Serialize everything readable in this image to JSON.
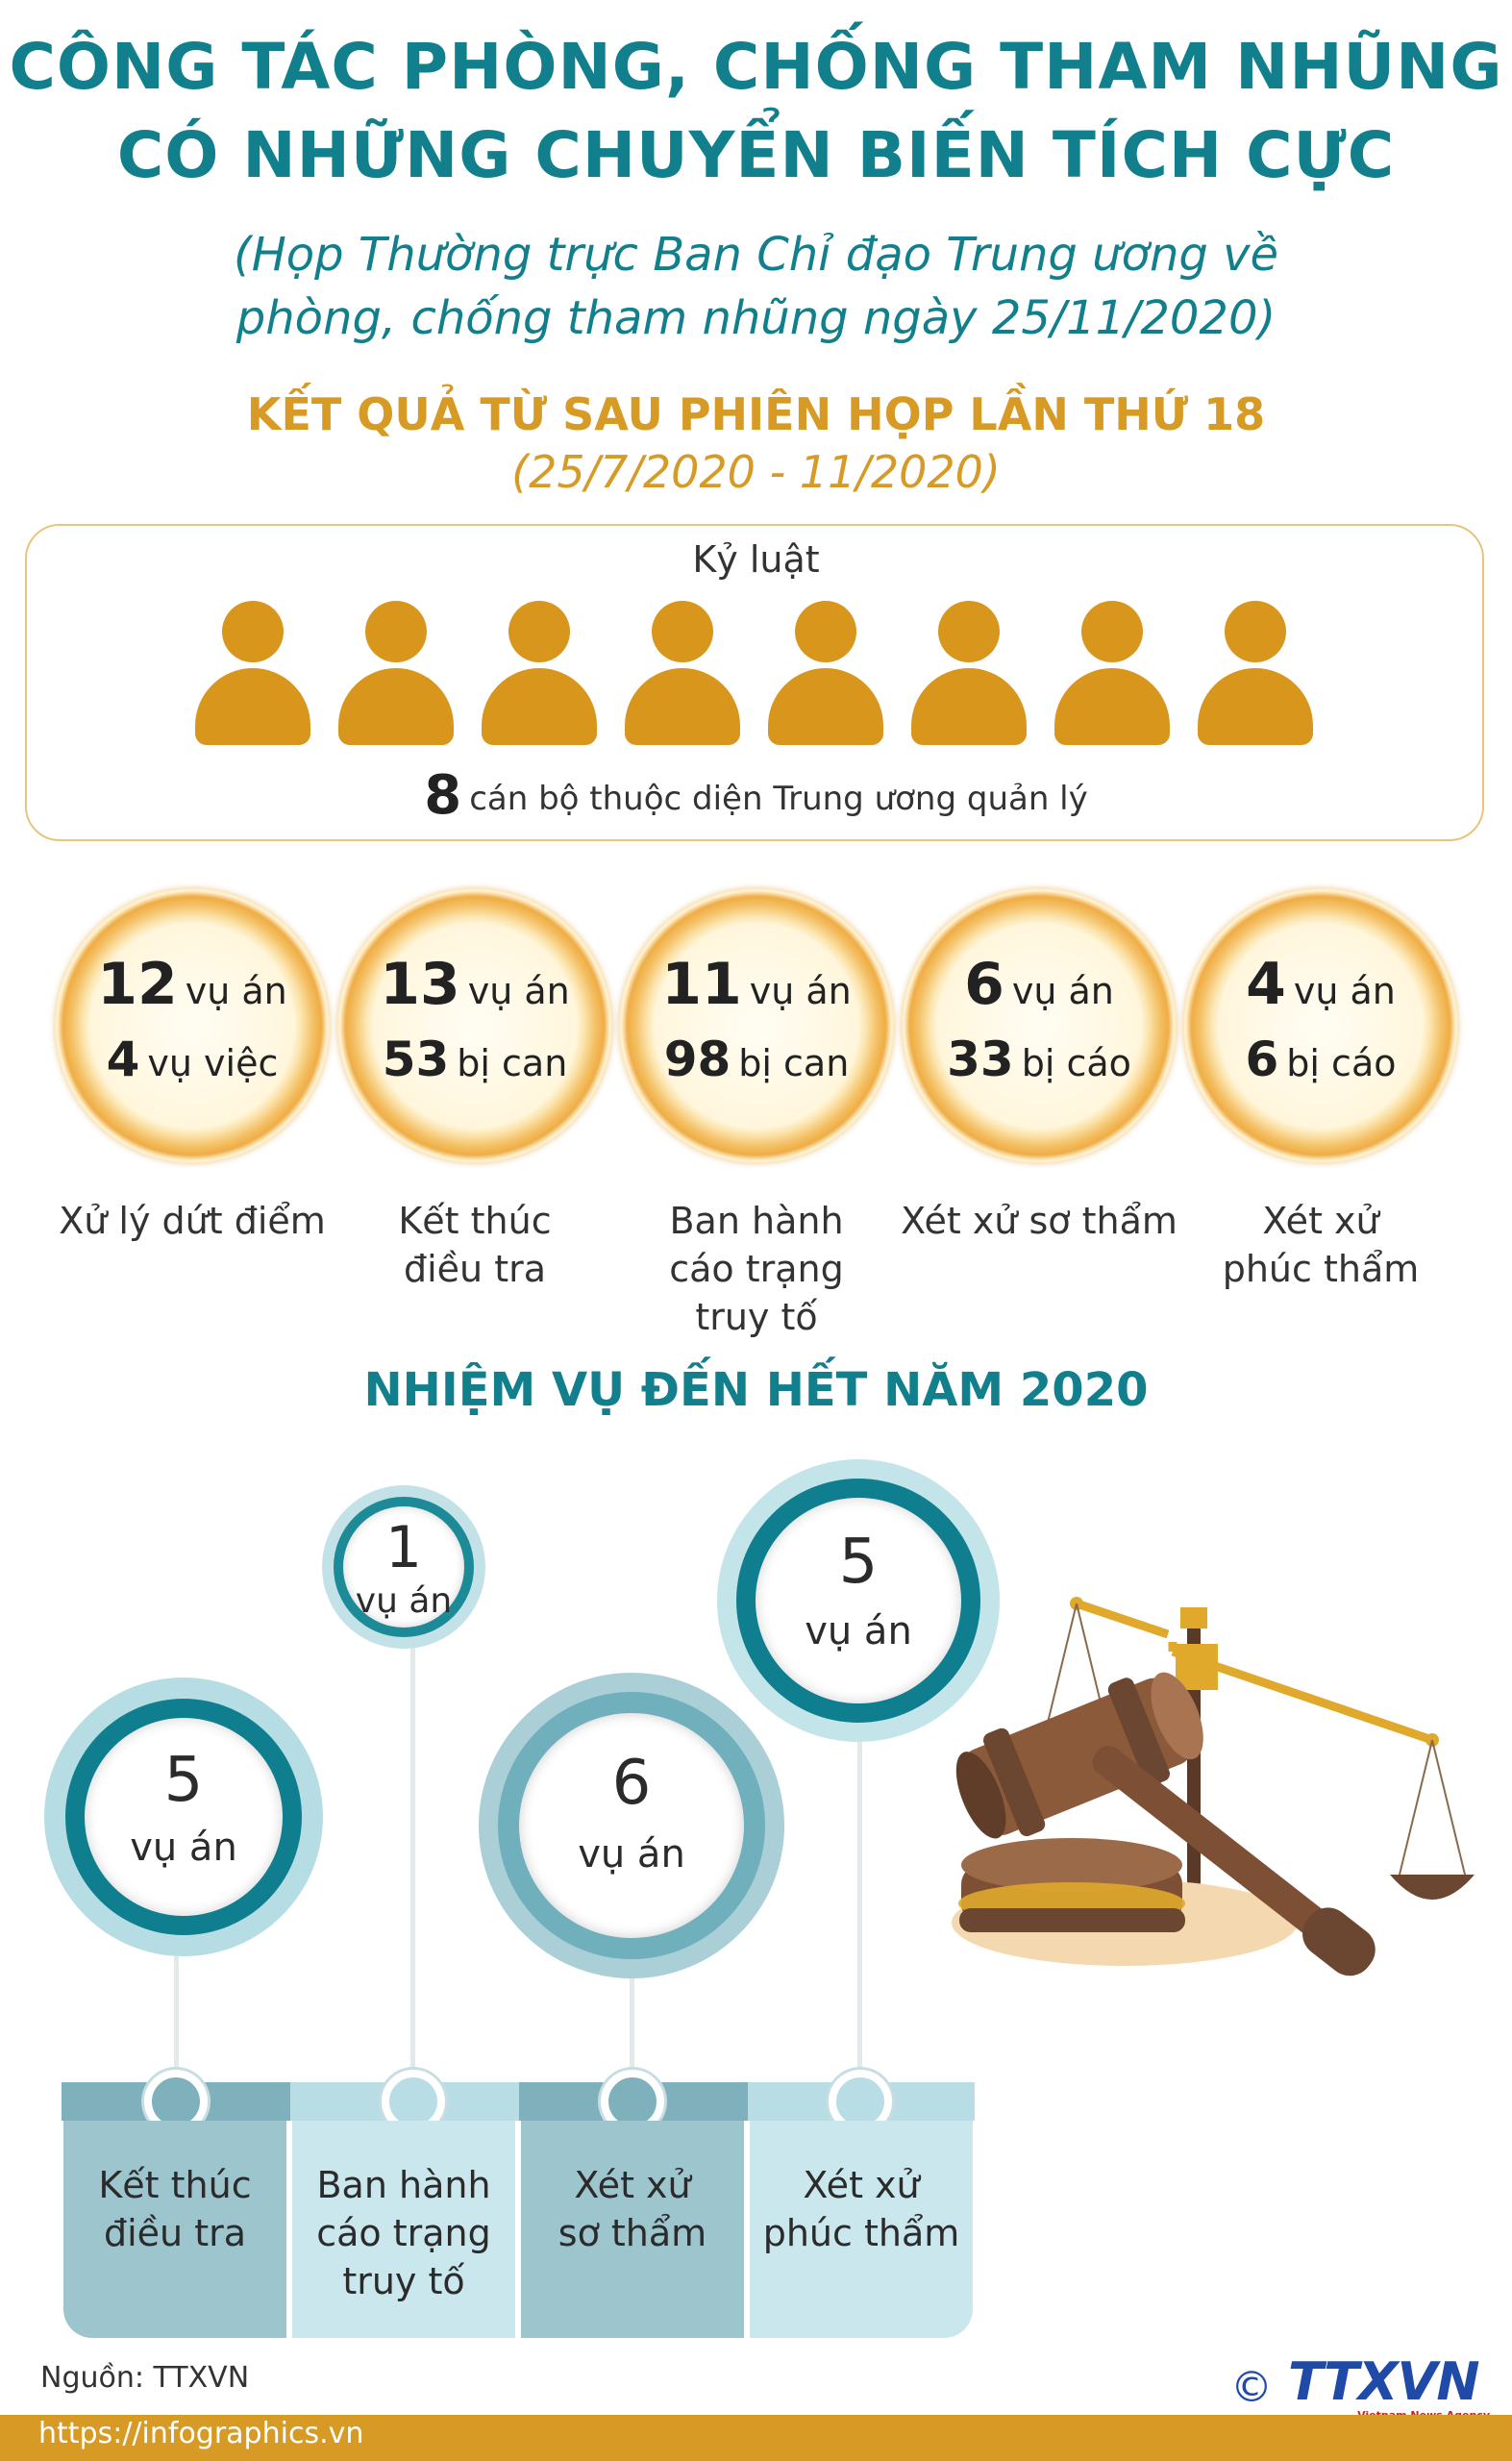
{
  "header": {
    "title_line1": "CÔNG TÁC PHÒNG, CHỐNG THAM NHŨNG",
    "title_line2": "CÓ NHỮNG CHUYỂN BIẾN TÍCH CỰC",
    "subtitle_line1": "(Họp Thường trực Ban Chỉ đạo Trung ương về",
    "subtitle_line2": "phòng, chống tham nhũng ngày 25/11/2020)"
  },
  "results": {
    "heading": "KẾT QUẢ TỪ SAU PHIÊN HỌP LẦN THỨ 18",
    "period": "(25/7/2020 - 11/2020)"
  },
  "discipline": {
    "label": "Kỷ luật",
    "count": "8",
    "description": "cán bộ thuộc diện Trung ương quản lý",
    "icon": "person-icon",
    "icon_color": "#d9961d"
  },
  "stats": [
    {
      "n1": "12",
      "u1": "vụ án",
      "n2": "4",
      "u2": "vụ việc",
      "caption": [
        "Xử lý dứt điểm"
      ]
    },
    {
      "n1": "13",
      "u1": "vụ án",
      "n2": "53",
      "u2": "bị can",
      "caption": [
        "Kết thúc",
        "điều tra"
      ]
    },
    {
      "n1": "11",
      "u1": "vụ án",
      "n2": "98",
      "u2": "bị can",
      "caption": [
        "Ban hành",
        "cáo trạng",
        "truy tố"
      ]
    },
    {
      "n1": "6",
      "u1": "vụ án",
      "n2": "33",
      "u2": "bị cáo",
      "caption": [
        "Xét xử sơ thẩm"
      ]
    },
    {
      "n1": "4",
      "u1": "vụ án",
      "n2": "6",
      "u2": "bị cáo",
      "caption": [
        "Xét xử",
        "phúc thẩm"
      ]
    }
  ],
  "tasks": {
    "heading": "NHIỆM VỤ ĐẾN HẾT NĂM 2020",
    "items": [
      {
        "number": "5",
        "unit": "vụ án",
        "label": [
          "Kết thúc",
          "điều tra"
        ]
      },
      {
        "number": "1",
        "unit": "vụ án",
        "label": [
          "Ban hành",
          "cáo trạng",
          "truy tố"
        ]
      },
      {
        "number": "6",
        "unit": "vụ án",
        "label": [
          "Xét xử",
          "sơ thẩm"
        ]
      },
      {
        "number": "5",
        "unit": "vụ án",
        "label": [
          "Xét xử",
          "phúc thẩm"
        ]
      }
    ]
  },
  "illustration": {
    "icon": "gavel-and-scales-icon"
  },
  "footer": {
    "source": "Nguồn: TTXVN",
    "url": "https://infographics.vn",
    "copyright": "©",
    "logo_text": "TTXVN",
    "logo_subtext": "Vietnam News Agency",
    "accent": "#d69a25"
  }
}
